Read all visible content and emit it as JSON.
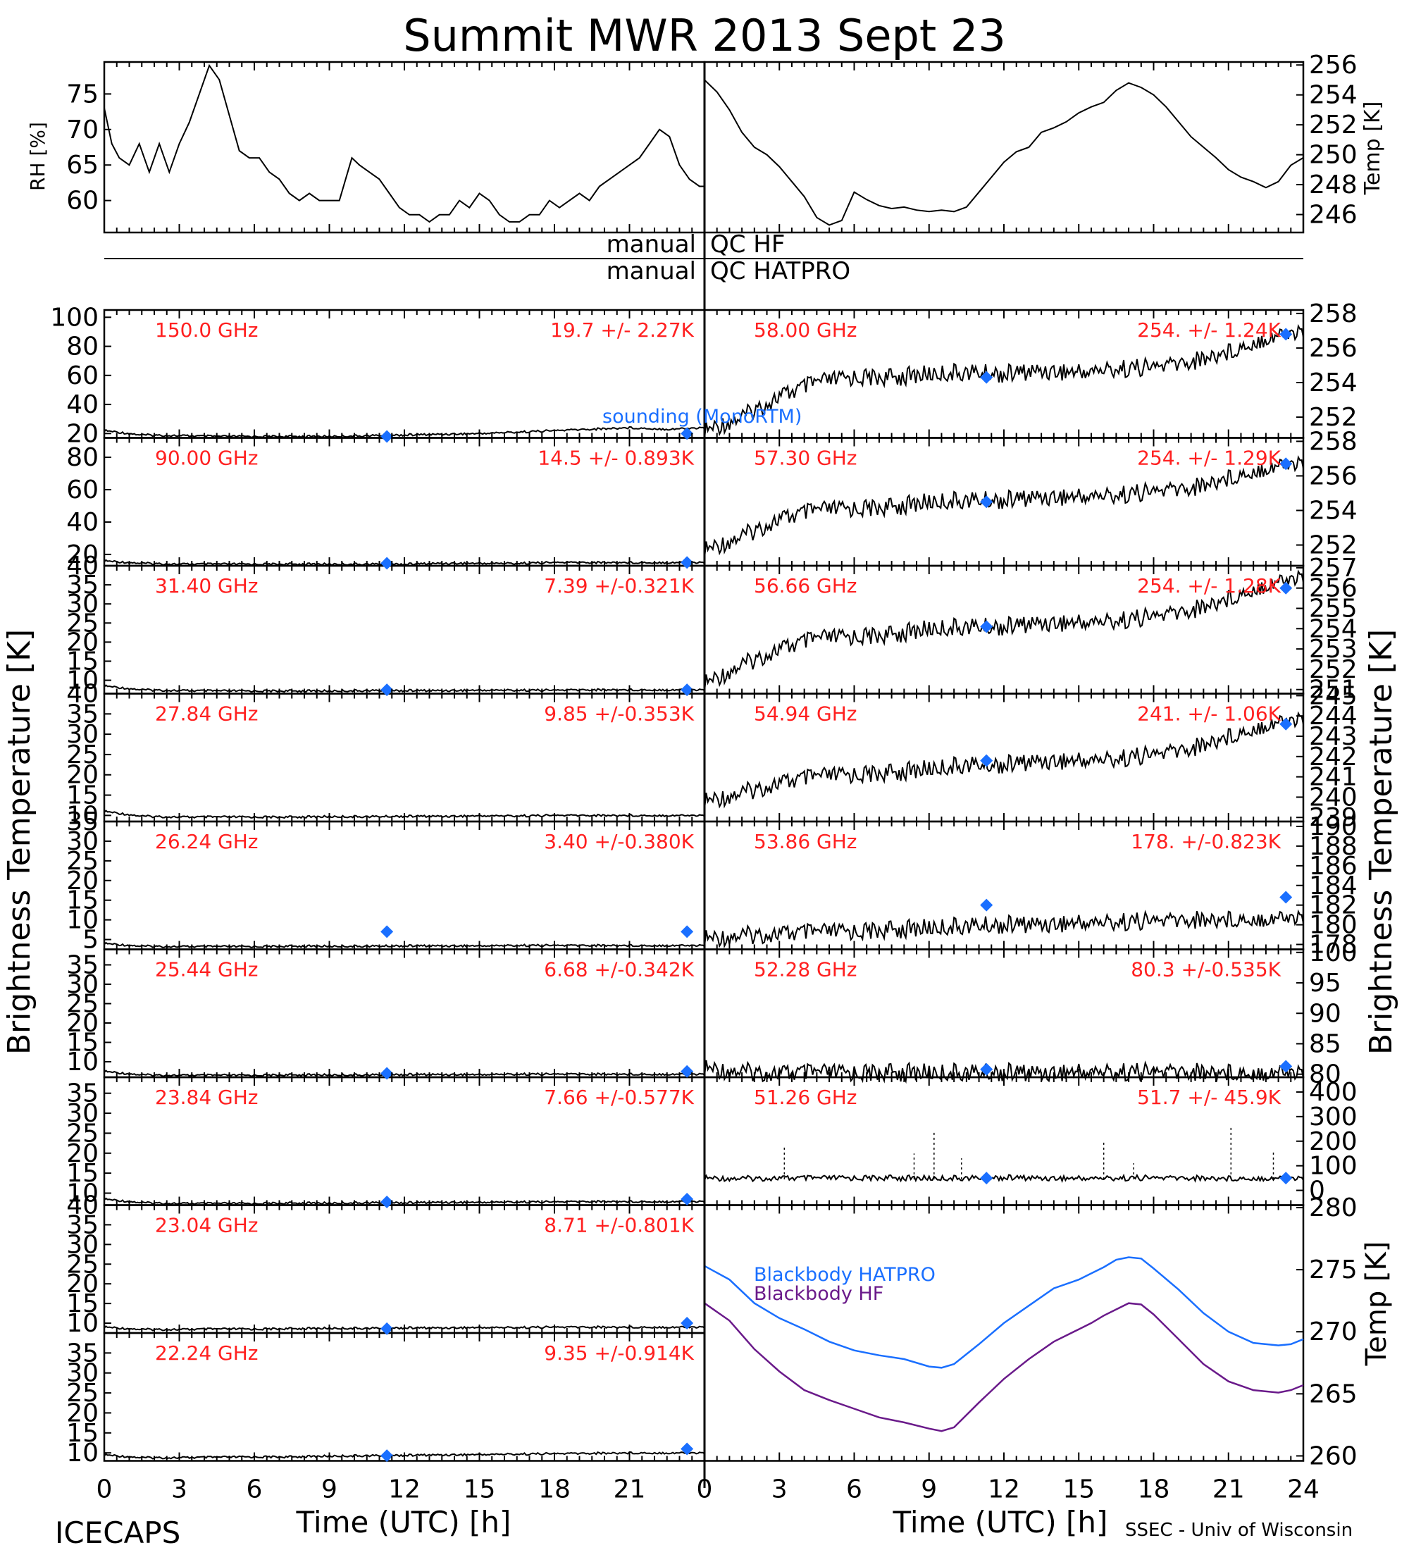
{
  "title": "Summit MWR 2013 Sept 23",
  "footer": {
    "left": "ICECAPS",
    "right": "SSEC - Univ of Wisconsin",
    "xlabel": "Time (UTC) [h]"
  },
  "qc": {
    "row1_left": "manual",
    "row1_right": "QC HF",
    "row2_left": "manual",
    "row2_right": "QC HATPRO"
  },
  "side_labels": {
    "left": "Brightness Temperature [K]",
    "right": "Brightness Temperature [K]"
  },
  "legend": {
    "sounding": "sounding (MonoRTM)",
    "bb_hatpro": "Blackbody HATPRO",
    "bb_hf": "Blackbody HF"
  },
  "colors": {
    "red": "#ff2020",
    "blue": "#1a6fff",
    "purple": "#6a1a8a",
    "line": "#000000"
  },
  "x_ticks": [
    "0",
    "3",
    "6",
    "9",
    "12",
    "15",
    "18",
    "21",
    "24"
  ],
  "chart_data": {
    "top_left": {
      "type": "line",
      "ylabel": "RH [%]",
      "ylim": [
        55.5,
        79.5
      ],
      "yticks": [
        60,
        65,
        70,
        75
      ],
      "x": [
        0,
        0.3,
        0.6,
        1.0,
        1.4,
        1.8,
        2.2,
        2.6,
        3.0,
        3.4,
        3.8,
        4.2,
        4.6,
        5.0,
        5.4,
        5.8,
        6.2,
        6.6,
        7.0,
        7.4,
        7.8,
        8.2,
        8.6,
        9.0,
        9.4,
        9.9,
        10.2,
        10.6,
        11.0,
        11.4,
        11.8,
        12.2,
        12.6,
        13.0,
        13.4,
        13.8,
        14.2,
        14.6,
        15.0,
        15.4,
        15.8,
        16.2,
        16.6,
        17.0,
        17.4,
        17.8,
        18.2,
        18.6,
        19.0,
        19.4,
        19.8,
        20.2,
        20.6,
        21.0,
        21.4,
        21.8,
        22.2,
        22.6,
        23.0,
        23.4,
        23.8,
        24.0
      ],
      "y": [
        73,
        68,
        66,
        65,
        68,
        64,
        68,
        64,
        68,
        71,
        75,
        79,
        77,
        72,
        67,
        66,
        66,
        64,
        63,
        61,
        60,
        61,
        60,
        60,
        60,
        66,
        65,
        64,
        63,
        61,
        59,
        58,
        58,
        57,
        58,
        58,
        60,
        59,
        61,
        60,
        58,
        57,
        57,
        58,
        58,
        60,
        59,
        60,
        61,
        60,
        62,
        63,
        64,
        65,
        66,
        68,
        70,
        69,
        65,
        63,
        62,
        62
      ]
    },
    "top_right": {
      "type": "line",
      "ylabel": "Temp [K]",
      "ylim": [
        244.8,
        256.2
      ],
      "yticks": [
        246,
        248,
        250,
        252,
        254,
        256
      ],
      "x": [
        0,
        0.5,
        1.0,
        1.5,
        2.0,
        2.5,
        3.0,
        3.5,
        4.0,
        4.5,
        5.0,
        5.5,
        6.0,
        6.5,
        7.0,
        7.5,
        8.0,
        8.5,
        9.0,
        9.5,
        10.0,
        10.5,
        11.0,
        11.5,
        12.0,
        12.5,
        13.0,
        13.5,
        14.0,
        14.5,
        15.0,
        15.5,
        16.0,
        16.5,
        17.0,
        17.5,
        18.0,
        18.5,
        19.0,
        19.5,
        20.0,
        20.5,
        21.0,
        21.5,
        22.0,
        22.5,
        23.0,
        23.5,
        24.0
      ],
      "y": [
        255,
        254.2,
        253,
        251.5,
        250.5,
        250,
        249.2,
        248.2,
        247.2,
        245.8,
        245.3,
        245.6,
        247.5,
        247,
        246.6,
        246.4,
        246.5,
        246.3,
        246.2,
        246.3,
        246.2,
        246.5,
        247.5,
        248.5,
        249.5,
        250.2,
        250.5,
        251.5,
        251.8,
        252.2,
        252.8,
        253.2,
        253.5,
        254.3,
        254.8,
        254.5,
        254,
        253.2,
        252.2,
        251.2,
        250.5,
        249.8,
        249,
        248.5,
        248.2,
        247.8,
        248.2,
        249.3,
        249.8
      ]
    },
    "left_panels": [
      {
        "freq": "150.0 GHz",
        "stat": "19.7 +/-  2.27K",
        "yticks": [
          20,
          40,
          60,
          80,
          100
        ],
        "ylim": [
          17,
          105
        ],
        "y": [
          22,
          19,
          18.5,
          18,
          18,
          18,
          18,
          18.5,
          19,
          19.5,
          20,
          21,
          22,
          23,
          24,
          23,
          24
        ],
        "sounding": [
          [
            11.3,
            18
          ],
          [
            23.3,
            20
          ]
        ]
      },
      {
        "freq": "90.00 GHz",
        "stat": "14.5 +/- 0.893K",
        "yticks": [
          20,
          40,
          60,
          80
        ],
        "ylim": [
          13,
          92
        ],
        "y": [
          16,
          14.5,
          14,
          14,
          14,
          14,
          14,
          14,
          14,
          14.5,
          14.5,
          14.5,
          15,
          15,
          15,
          15,
          15
        ],
        "sounding": [
          [
            11.3,
            14.5
          ],
          [
            23.3,
            15
          ]
        ]
      },
      {
        "freq": "31.40 GHz",
        "stat": "7.39 +/-0.321K",
        "yticks": [
          10,
          15,
          20,
          25,
          30,
          35,
          40
        ],
        "ylim": [
          6.5,
          40
        ],
        "y": [
          8.5,
          7.5,
          7.3,
          7.2,
          7.2,
          7.2,
          7.2,
          7.3,
          7.3,
          7.3,
          7.4,
          7.4,
          7.4,
          7.5,
          7.5,
          7.5,
          7.5
        ],
        "sounding": [
          [
            11.3,
            7.5
          ],
          [
            23.3,
            7.5
          ]
        ]
      },
      {
        "freq": "27.84 GHz",
        "stat": "9.85 +/-0.353K",
        "yticks": [
          10,
          15,
          20,
          25,
          30,
          35,
          40
        ],
        "ylim": [
          8.5,
          40
        ],
        "y": [
          11,
          9.8,
          9.6,
          9.6,
          9.6,
          9.6,
          9.7,
          9.7,
          9.8,
          9.8,
          9.9,
          9.9,
          10,
          10,
          10,
          10,
          10
        ],
        "sounding": []
      },
      {
        "freq": "26.24 GHz",
        "stat": "3.40 +/-0.380K",
        "yticks": [
          5,
          10,
          15,
          20,
          25,
          30,
          35
        ],
        "ylim": [
          2.5,
          35
        ],
        "y": [
          4,
          3.3,
          3.2,
          3.2,
          3.2,
          3.3,
          3.3,
          3.3,
          3.4,
          3.4,
          3.4,
          3.5,
          3.5,
          3.5,
          3.5,
          3.5,
          3.5
        ],
        "sounding": [
          [
            11.3,
            7
          ],
          [
            23.3,
            7
          ]
        ]
      },
      {
        "freq": "25.44 GHz",
        "stat": "6.68 +/-0.342K",
        "yticks": [
          10,
          15,
          20,
          25,
          30,
          35
        ],
        "ylim": [
          6,
          39
        ],
        "y": [
          7.5,
          6.6,
          6.5,
          6.5,
          6.5,
          6.6,
          6.6,
          6.6,
          6.7,
          6.7,
          6.7,
          6.8,
          6.8,
          6.8,
          6.8,
          6.8,
          6.8
        ],
        "sounding": [
          [
            11.3,
            7
          ],
          [
            23.3,
            7.5
          ]
        ]
      },
      {
        "freq": "23.84 GHz",
        "stat": "7.66 +/-0.577K",
        "yticks": [
          10,
          15,
          20,
          25,
          30,
          35
        ],
        "ylim": [
          7,
          39
        ],
        "y": [
          8.5,
          7.6,
          7.4,
          7.4,
          7.4,
          7.5,
          7.5,
          7.6,
          7.6,
          7.7,
          7.7,
          7.8,
          7.8,
          7.9,
          7.9,
          7.9,
          7.9
        ],
        "sounding": [
          [
            11.3,
            7.8
          ],
          [
            23.3,
            8.5
          ]
        ]
      },
      {
        "freq": "23.04 GHz",
        "stat": "8.71 +/-0.801K",
        "yticks": [
          10,
          15,
          20,
          25,
          30,
          35,
          40
        ],
        "ylim": [
          7.5,
          40
        ],
        "y": [
          9,
          8.4,
          8.4,
          8.5,
          8.5,
          8.6,
          8.7,
          8.7,
          8.8,
          8.8,
          8.9,
          8.9,
          9,
          9,
          9,
          9,
          9
        ],
        "sounding": [
          [
            11.3,
            8.6
          ],
          [
            23.3,
            10
          ]
        ]
      },
      {
        "freq": "22.24 GHz",
        "stat": "9.35 +/-0.914K",
        "yticks": [
          10,
          15,
          20,
          25,
          30,
          35
        ],
        "ylim": [
          8,
          40
        ],
        "y": [
          9.5,
          8.8,
          8.8,
          8.9,
          9,
          9,
          9.2,
          9.3,
          9.4,
          9.5,
          9.6,
          9.7,
          9.8,
          9.9,
          10,
          10,
          10
        ],
        "sounding": [
          [
            11.3,
            9.3
          ],
          [
            23.3,
            11
          ]
        ]
      }
    ],
    "right_panels": [
      {
        "freq": "58.00 GHz",
        "stat": "254. +/- 1.24K",
        "yticks": [
          252,
          254,
          256,
          258
        ],
        "ylim": [
          250.8,
          258.2
        ],
        "y": [
          251.2,
          252,
          253.2,
          254,
          254.3,
          254.3,
          254.5,
          254.6,
          254.5,
          254.7,
          254.6,
          254.8,
          254.9,
          255.2,
          255.8,
          256.6,
          257
        ],
        "sounding": [
          [
            11.3,
            254.3
          ],
          [
            23.3,
            256.8
          ]
        ]
      },
      {
        "freq": "57.30 GHz",
        "stat": "254. +/- 1.29K",
        "yticks": [
          252,
          254,
          256,
          258
        ],
        "ylim": [
          250.8,
          258.2
        ],
        "y": [
          251.7,
          252.5,
          253.5,
          254,
          254.1,
          254.2,
          254.5,
          254.6,
          254.6,
          254.8,
          254.8,
          254.9,
          255.1,
          255.3,
          255.9,
          256.5,
          256.8
        ],
        "sounding": [
          [
            11.3,
            254.5
          ],
          [
            23.3,
            256.7
          ]
        ]
      },
      {
        "freq": "56.66 GHz",
        "stat": "254. +/- 1.28K",
        "yticks": [
          251,
          252,
          253,
          254,
          255,
          256,
          257
        ],
        "ylim": [
          250.8,
          257.1
        ],
        "y": [
          251.3,
          252.2,
          253,
          253.5,
          253.6,
          253.7,
          254,
          254.1,
          254.1,
          254.3,
          254.3,
          254.4,
          254.6,
          254.9,
          255.5,
          256.2,
          256.6
        ],
        "sounding": [
          [
            11.3,
            254.1
          ],
          [
            23.3,
            256
          ]
        ]
      },
      {
        "freq": "54.94 GHz",
        "stat": "241. +/- 1.06K",
        "yticks": [
          239,
          240,
          241,
          242,
          243,
          244,
          245
        ],
        "ylim": [
          238.8,
          245.1
        ],
        "y": [
          239.8,
          240.2,
          240.7,
          241,
          241.1,
          241.2,
          241.4,
          241.6,
          241.6,
          241.8,
          241.8,
          241.9,
          242.1,
          242.4,
          243,
          243.6,
          243.9
        ],
        "sounding": [
          [
            11.3,
            241.8
          ],
          [
            23.3,
            243.6
          ]
        ]
      },
      {
        "freq": "53.86 GHz",
        "stat": "178. +/-0.823K",
        "yticks": [
          178,
          180,
          182,
          184,
          186,
          188,
          190
        ],
        "ylim": [
          177.5,
          190.5
        ],
        "y": [
          178.6,
          178.9,
          179.1,
          179.2,
          179.3,
          179.5,
          179.7,
          179.9,
          180,
          180.1,
          180.2,
          180.3,
          180.4,
          180.5,
          180.6,
          180.7,
          180.8
        ],
        "sounding": [
          [
            11.3,
            182
          ],
          [
            23.3,
            182.8
          ]
        ]
      },
      {
        "freq": "52.28 GHz",
        "stat": "80.3 +/-0.535K",
        "yticks": [
          80,
          85,
          90,
          95,
          100
        ],
        "ylim": [
          79.5,
          100.5
        ],
        "y": [
          81,
          80.4,
          80.2,
          80.2,
          80.2,
          80.3,
          80.3,
          80.3,
          80.3,
          80.3,
          80.4,
          80.4,
          80.4,
          80.4,
          80.4,
          80.4,
          80.4
        ],
        "sounding": [
          [
            11.3,
            80.8
          ],
          [
            23.3,
            81.3
          ]
        ]
      },
      {
        "freq": "51.26 GHz",
        "stat": "51.7 +/- 45.9K",
        "yticks": [
          0,
          100,
          200,
          300,
          400
        ],
        "ylim": [
          -60,
          460
        ],
        "y": [
          50,
          48,
          50,
          49,
          50,
          51,
          49,
          50,
          52,
          50,
          49,
          50,
          51,
          50,
          49,
          50,
          50
        ],
        "sounding": [
          [
            11.3,
            50
          ],
          [
            23.3,
            50
          ]
        ]
      }
    ],
    "blackbody": {
      "type": "line",
      "ylabel": "Temp [K]",
      "ylim": [
        259.6,
        280.2
      ],
      "yticks": [
        260,
        265,
        270,
        275,
        280
      ],
      "x": [
        0,
        1,
        2,
        3,
        4,
        5,
        6,
        7,
        8,
        9,
        9.5,
        10,
        11,
        12,
        13,
        14,
        15,
        15.5,
        16,
        16.5,
        17,
        17.5,
        18,
        19,
        20,
        21,
        22,
        23,
        23.5,
        24
      ],
      "hatpro": [
        275.3,
        274.2,
        272.3,
        271.1,
        270.2,
        269.2,
        268.5,
        268.1,
        267.8,
        267.2,
        267.1,
        267.4,
        269,
        270.7,
        272.1,
        273.5,
        274.2,
        274.7,
        275.2,
        275.8,
        276,
        275.9,
        275.1,
        273.4,
        271.5,
        270,
        269.1,
        268.9,
        269,
        269.4
      ],
      "hf": [
        272.3,
        270.9,
        268.6,
        266.8,
        265.3,
        264.5,
        263.8,
        263.1,
        262.7,
        262.2,
        262,
        262.3,
        264.3,
        266.2,
        267.8,
        269.2,
        270.2,
        270.7,
        271.3,
        271.8,
        272.3,
        272.2,
        271.4,
        269.4,
        267.4,
        266,
        265.3,
        265.1,
        265.3,
        265.7
      ]
    }
  }
}
